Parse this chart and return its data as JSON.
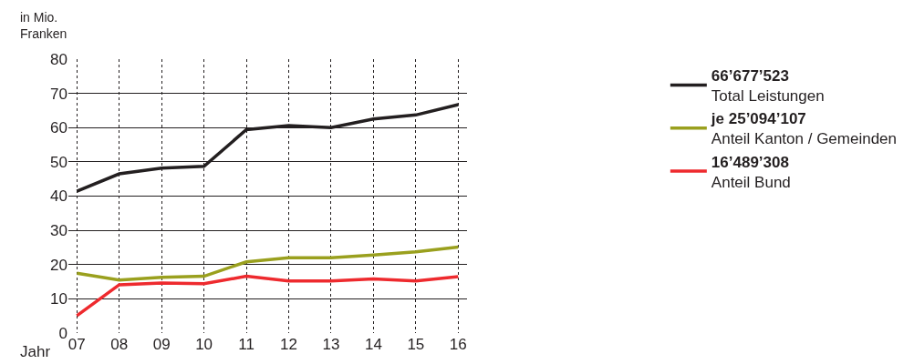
{
  "chart_data": {
    "type": "line",
    "ylabel": "in Mio.\nFranken",
    "xlabel": "Jahr",
    "categories": [
      "07",
      "08",
      "09",
      "10",
      "11",
      "12",
      "13",
      "14",
      "15",
      "16"
    ],
    "series": [
      {
        "name": "66’677’523\nTotal Leistungen",
        "color": "#231f20",
        "values": [
          41.4,
          46.5,
          48.2,
          48.7,
          59.4,
          60.6,
          60.0,
          62.5,
          63.7,
          66.7
        ]
      },
      {
        "name": "je 25’094’107\nAnteil Kanton / Gemeinden",
        "color": "#9aa01e",
        "values": [
          17.5,
          15.5,
          16.3,
          16.6,
          20.8,
          22.0,
          22.0,
          22.8,
          23.7,
          25.1
        ]
      },
      {
        "name": "16’489’308\nAnteil Bund",
        "color": "#ee2a2e",
        "values": [
          5.1,
          14.1,
          14.6,
          14.4,
          16.6,
          15.2,
          15.2,
          15.8,
          15.2,
          16.5
        ]
      }
    ],
    "ylim": [
      0,
      80
    ],
    "yticks": [
      0,
      10,
      20,
      30,
      40,
      50,
      60,
      70,
      80
    ],
    "grid": true,
    "legend": "right",
    "marker": "none",
    "line_style": "solid"
  }
}
